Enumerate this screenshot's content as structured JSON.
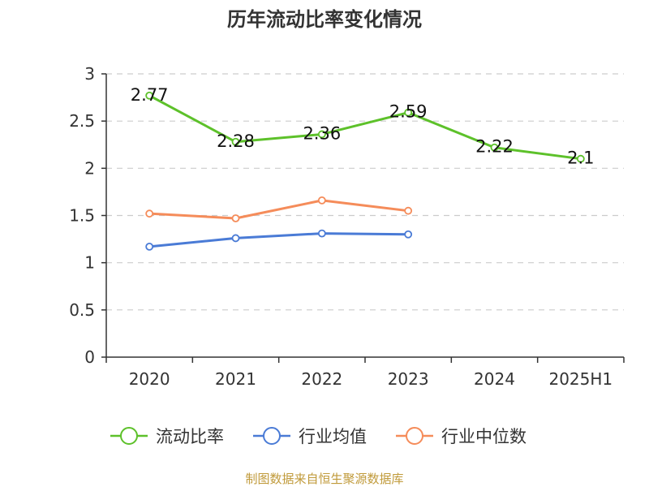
{
  "chart_data": {
    "type": "line",
    "title": "历年流动比率变化情况",
    "categories": [
      "2020",
      "2021",
      "2022",
      "2023",
      "2024",
      "2025H1"
    ],
    "ylim": [
      0,
      3
    ],
    "yticks": [
      "0",
      "0.5",
      "1",
      "1.5",
      "2",
      "2.5",
      "3"
    ],
    "grid": true,
    "legend_position": "bottom",
    "series": [
      {
        "name": "流动比率",
        "color": "#5dc12a",
        "values": [
          2.77,
          2.28,
          2.36,
          2.59,
          2.22,
          2.1
        ],
        "labels": [
          "2.77",
          "2.28",
          "2.36",
          "2.59",
          "2.22",
          "2.1"
        ]
      },
      {
        "name": "行业均值",
        "color": "#4a7bd6",
        "values": [
          1.17,
          1.26,
          1.31,
          1.3,
          null,
          null
        ]
      },
      {
        "name": "行业中位数",
        "color": "#f58c5a",
        "values": [
          1.52,
          1.47,
          1.66,
          1.55,
          null,
          null
        ]
      }
    ],
    "source": "制图数据来自恒生聚源数据库"
  }
}
